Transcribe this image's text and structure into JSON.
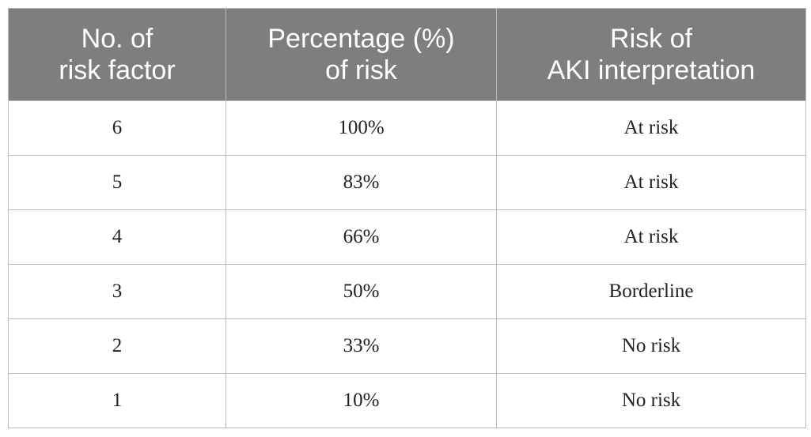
{
  "table": {
    "headers": [
      {
        "line1": "No. of",
        "line2": "risk factor"
      },
      {
        "line1": "Percentage (%)",
        "line2": "of risk"
      },
      {
        "line1": "Risk of",
        "line2": "AKI interpretation"
      }
    ],
    "rows": [
      [
        "6",
        "100%",
        "At risk"
      ],
      [
        "5",
        "83%",
        "At risk"
      ],
      [
        "4",
        "66%",
        "At risk"
      ],
      [
        "3",
        "50%",
        "Borderline"
      ],
      [
        "2",
        "33%",
        "No risk"
      ],
      [
        "1",
        "10%",
        "No risk"
      ]
    ]
  },
  "colors": {
    "header_background": "#7d7f7e",
    "header_text": "#ffffff",
    "grid_line": "#b9b9b9"
  }
}
